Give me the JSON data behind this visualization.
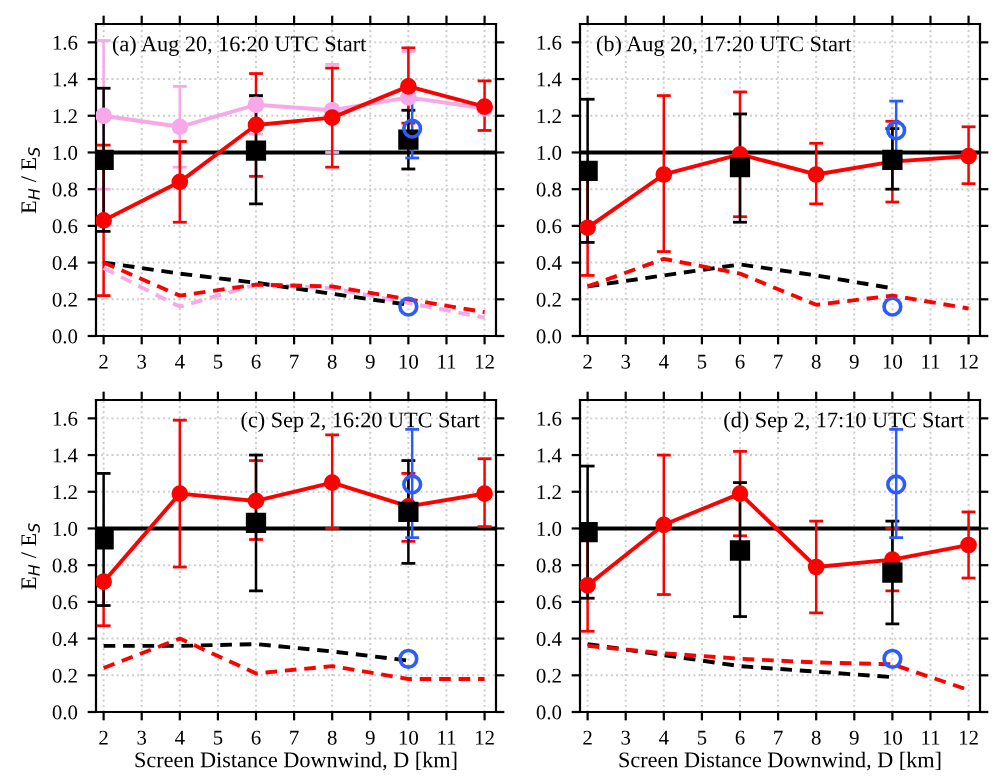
{
  "chart_data": [
    {
      "type": "line",
      "title": "(a) Aug 20, 16:20 UTC Start",
      "ylabel": "E$_{H}$ / E$_{S}$",
      "xlim": [
        1.8,
        12.3
      ],
      "ylim": [
        0,
        1.7
      ],
      "xticks": [
        2,
        3,
        4,
        5,
        6,
        7,
        8,
        9,
        10,
        11,
        12
      ],
      "yticks": [
        {
          "value": 0,
          "label": "0.0"
        },
        {
          "value": 0.2,
          "label": "0.2"
        },
        {
          "value": 0.4,
          "label": "0.4"
        },
        {
          "value": 0.6,
          "label": "0.6"
        },
        {
          "value": 0.8,
          "label": "0.8"
        },
        {
          "value": 1.0,
          "label": "1.0"
        },
        {
          "value": 1.2,
          "label": "1.2"
        },
        {
          "value": 1.4,
          "label": "1.4"
        },
        {
          "value": 1.6,
          "label": "1.6"
        }
      ],
      "grid": true,
      "ref_lines": [
        {
          "axis": "y",
          "value": 1.0,
          "color": "#000000"
        }
      ],
      "series": [
        {
          "color": "#f7a8e8",
          "marker": "circle",
          "line_style": "solid",
          "x": [
            2,
            4,
            6,
            8,
            10,
            12
          ],
          "values": [
            1.2,
            1.14,
            1.26,
            1.23,
            1.3,
            1.24
          ],
          "errors": [
            [
              0.8,
              1.61
            ],
            [
              0.92,
              1.36
            ],
            [
              1.1,
              1.3
            ],
            [
              1.0,
              1.48
            ],
            [
              1.05,
              1.55
            ],
            null
          ]
        },
        {
          "color": "#ff0000",
          "marker": "circle",
          "line_style": "solid",
          "x": [
            2,
            4,
            6,
            8,
            10,
            12
          ],
          "values": [
            0.63,
            0.84,
            1.15,
            1.19,
            1.36,
            1.25
          ],
          "errors": [
            [
              0.22,
              1.04
            ],
            [
              0.62,
              1.06
            ],
            [
              0.87,
              1.43
            ],
            [
              0.92,
              1.46
            ],
            [
              1.16,
              1.57
            ],
            [
              1.12,
              1.39
            ]
          ]
        },
        {
          "type": "scatter",
          "color": "#000000",
          "marker": "square",
          "x": [
            2,
            6,
            10
          ],
          "values": [
            0.96,
            1.01,
            1.07
          ],
          "errors": [
            [
              0.57,
              1.35
            ],
            [
              0.72,
              1.31
            ],
            [
              0.91,
              1.23
            ]
          ]
        },
        {
          "type": "scatter",
          "color": "#2b5cff",
          "marker": "circle",
          "x": [
            10.1,
            10
          ],
          "values": [
            1.13,
            0.16
          ],
          "errors": [
            [
              0.97,
              1.29
            ],
            null
          ]
        },
        {
          "color": "#f7a8e8",
          "marker": "none",
          "line_style": "dashed",
          "x": [
            2,
            4,
            6,
            8,
            10,
            12
          ],
          "values": [
            0.37,
            0.16,
            0.28,
            0.26,
            0.18,
            0.1
          ]
        },
        {
          "color": "#000000",
          "marker": "none",
          "line_style": "dashed",
          "x": [
            2,
            4,
            6,
            8,
            10
          ],
          "values": [
            0.4,
            0.34,
            0.29,
            0.23,
            0.17
          ]
        },
        {
          "color": "#ff0000",
          "marker": "none",
          "line_style": "dashed",
          "x": [
            2,
            4,
            6,
            8,
            10,
            12
          ],
          "values": [
            0.4,
            0.22,
            0.28,
            0.27,
            0.2,
            0.13
          ]
        }
      ]
    },
    {
      "type": "line",
      "title": "(b) Aug 20, 17:20 UTC Start",
      "xlim": [
        1.8,
        12.3
      ],
      "ylim": [
        0,
        1.7
      ],
      "xticks": [
        2,
        3,
        4,
        5,
        6,
        7,
        8,
        9,
        10,
        11,
        12
      ],
      "yticks": [
        {
          "value": 0,
          "label": "0.0"
        },
        {
          "value": 0.2,
          "label": "0.2"
        },
        {
          "value": 0.4,
          "label": "0.4"
        },
        {
          "value": 0.6,
          "label": "0.6"
        },
        {
          "value": 0.8,
          "label": "0.8"
        },
        {
          "value": 1.0,
          "label": "1.0"
        },
        {
          "value": 1.2,
          "label": "1.2"
        },
        {
          "value": 1.4,
          "label": "1.4"
        },
        {
          "value": 1.6,
          "label": "1.6"
        }
      ],
      "grid": true,
      "ref_lines": [
        {
          "axis": "y",
          "value": 1.0,
          "color": "#000000"
        }
      ],
      "series": [
        {
          "color": "#ff0000",
          "marker": "circle",
          "line_style": "solid",
          "x": [
            2,
            4,
            6,
            8,
            10,
            12
          ],
          "values": [
            0.59,
            0.88,
            0.99,
            0.88,
            0.95,
            0.98
          ],
          "errors": [
            [
              0.33,
              0.87
            ],
            [
              0.46,
              1.31
            ],
            [
              0.65,
              1.33
            ],
            [
              0.72,
              1.05
            ],
            [
              0.73,
              1.17
            ],
            [
              0.83,
              1.14
            ]
          ]
        },
        {
          "type": "scatter",
          "color": "#000000",
          "marker": "square",
          "x": [
            2,
            6,
            10
          ],
          "values": [
            0.9,
            0.92,
            0.96
          ],
          "errors": [
            [
              0.51,
              1.29
            ],
            [
              0.62,
              1.21
            ],
            [
              0.8,
              1.13
            ]
          ]
        },
        {
          "type": "scatter",
          "color": "#2b5cff",
          "marker": "circle",
          "x": [
            10.1,
            10
          ],
          "values": [
            1.12,
            0.16
          ],
          "errors": [
            [
              0.96,
              1.28
            ],
            null
          ]
        },
        {
          "color": "#000000",
          "marker": "none",
          "line_style": "dashed",
          "x": [
            2,
            4,
            6,
            8,
            10
          ],
          "values": [
            0.27,
            0.33,
            0.39,
            0.33,
            0.26
          ]
        },
        {
          "color": "#ff0000",
          "marker": "none",
          "line_style": "dashed",
          "x": [
            2,
            4,
            6,
            8,
            10,
            12
          ],
          "values": [
            0.27,
            0.42,
            0.34,
            0.17,
            0.22,
            0.15
          ]
        }
      ]
    },
    {
      "type": "line",
      "title": "(c) Sep 2, 16:20 UTC Start",
      "xlabel": "Screen Distance Downwind, D [km]",
      "ylabel": "E$_{H}$ / E$_{S}$",
      "xlim": [
        1.8,
        12.3
      ],
      "ylim": [
        0,
        1.7
      ],
      "xticks": [
        2,
        3,
        4,
        5,
        6,
        7,
        8,
        9,
        10,
        11,
        12
      ],
      "yticks": [
        {
          "value": 0,
          "label": "0.0"
        },
        {
          "value": 0.2,
          "label": "0.2"
        },
        {
          "value": 0.4,
          "label": "0.4"
        },
        {
          "value": 0.6,
          "label": "0.6"
        },
        {
          "value": 0.8,
          "label": "0.8"
        },
        {
          "value": 1.0,
          "label": "1.0"
        },
        {
          "value": 1.2,
          "label": "1.2"
        },
        {
          "value": 1.4,
          "label": "1.4"
        },
        {
          "value": 1.6,
          "label": "1.6"
        }
      ],
      "grid": true,
      "ref_lines": [
        {
          "axis": "y",
          "value": 1.0,
          "color": "#000000"
        }
      ],
      "series": [
        {
          "color": "#ff0000",
          "marker": "circle",
          "line_style": "solid",
          "x": [
            2,
            4,
            6,
            8,
            10,
            12
          ],
          "values": [
            0.71,
            1.19,
            1.15,
            1.25,
            1.12,
            1.19
          ],
          "errors": [
            [
              0.47,
              0.71
            ],
            [
              0.79,
              1.59
            ],
            [
              0.94,
              1.37
            ],
            [
              1.0,
              1.51
            ],
            [
              0.93,
              1.3
            ],
            [
              1.01,
              1.38
            ]
          ]
        },
        {
          "type": "scatter",
          "color": "#000000",
          "marker": "square",
          "x": [
            2,
            6,
            10
          ],
          "values": [
            0.94,
            1.03,
            1.09
          ],
          "errors": [
            [
              0.58,
              1.3
            ],
            [
              0.66,
              1.4
            ],
            [
              0.81,
              1.37
            ]
          ]
        },
        {
          "type": "scatter",
          "color": "#2b5cff",
          "marker": "circle",
          "x": [
            10.1,
            10
          ],
          "values": [
            1.24,
            0.29
          ],
          "errors": [
            [
              0.95,
              1.54
            ],
            null
          ]
        },
        {
          "color": "#000000",
          "marker": "none",
          "line_style": "dashed",
          "x": [
            2,
            4,
            6,
            8,
            10
          ],
          "values": [
            0.36,
            0.36,
            0.37,
            0.33,
            0.28
          ]
        },
        {
          "color": "#ff0000",
          "marker": "none",
          "line_style": "dashed",
          "x": [
            2,
            4,
            6,
            8,
            10,
            12
          ],
          "values": [
            0.24,
            0.4,
            0.21,
            0.25,
            0.18,
            0.18
          ]
        }
      ]
    },
    {
      "type": "line",
      "title": "(d) Sep 2, 17:10 UTC Start",
      "xlabel": "Screen Distance Downwind, D [km]",
      "xlim": [
        1.8,
        12.3
      ],
      "ylim": [
        0,
        1.7
      ],
      "xticks": [
        2,
        3,
        4,
        5,
        6,
        7,
        8,
        9,
        10,
        11,
        12
      ],
      "yticks": [
        {
          "value": 0,
          "label": "0.0"
        },
        {
          "value": 0.2,
          "label": "0.2"
        },
        {
          "value": 0.4,
          "label": "0.4"
        },
        {
          "value": 0.6,
          "label": "0.6"
        },
        {
          "value": 0.8,
          "label": "0.8"
        },
        {
          "value": 1.0,
          "label": "1.0"
        },
        {
          "value": 1.2,
          "label": "1.2"
        },
        {
          "value": 1.4,
          "label": "1.4"
        },
        {
          "value": 1.6,
          "label": "1.6"
        }
      ],
      "grid": true,
      "ref_lines": [
        {
          "axis": "y",
          "value": 1.0,
          "color": "#000000"
        }
      ],
      "series": [
        {
          "color": "#ff0000",
          "marker": "circle",
          "line_style": "solid",
          "x": [
            2,
            4,
            6,
            8,
            10,
            12
          ],
          "values": [
            0.69,
            1.02,
            1.19,
            0.79,
            0.83,
            0.91
          ],
          "errors": [
            [
              0.44,
              0.94
            ],
            [
              0.64,
              1.4
            ],
            [
              0.96,
              1.42
            ],
            [
              0.54,
              1.04
            ],
            [
              0.66,
              1.0
            ],
            [
              0.73,
              1.09
            ]
          ]
        },
        {
          "type": "scatter",
          "color": "#000000",
          "marker": "square",
          "x": [
            2,
            6,
            10
          ],
          "values": [
            0.98,
            0.88,
            0.76
          ],
          "errors": [
            [
              0.62,
              1.34
            ],
            [
              0.52,
              1.25
            ],
            [
              0.48,
              1.04
            ]
          ]
        },
        {
          "type": "scatter",
          "color": "#2b5cff",
          "marker": "circle",
          "x": [
            10.1,
            10
          ],
          "values": [
            1.24,
            0.29
          ],
          "errors": [
            [
              0.95,
              1.54
            ],
            null
          ]
        },
        {
          "color": "#000000",
          "marker": "none",
          "line_style": "dashed",
          "x": [
            2,
            4,
            6,
            8,
            10
          ],
          "values": [
            0.37,
            0.31,
            0.25,
            0.22,
            0.19
          ]
        },
        {
          "color": "#ff0000",
          "marker": "none",
          "line_style": "dashed",
          "x": [
            2,
            4,
            6,
            8,
            10,
            12
          ],
          "values": [
            0.36,
            0.32,
            0.29,
            0.27,
            0.26,
            0.12
          ]
        }
      ]
    }
  ]
}
